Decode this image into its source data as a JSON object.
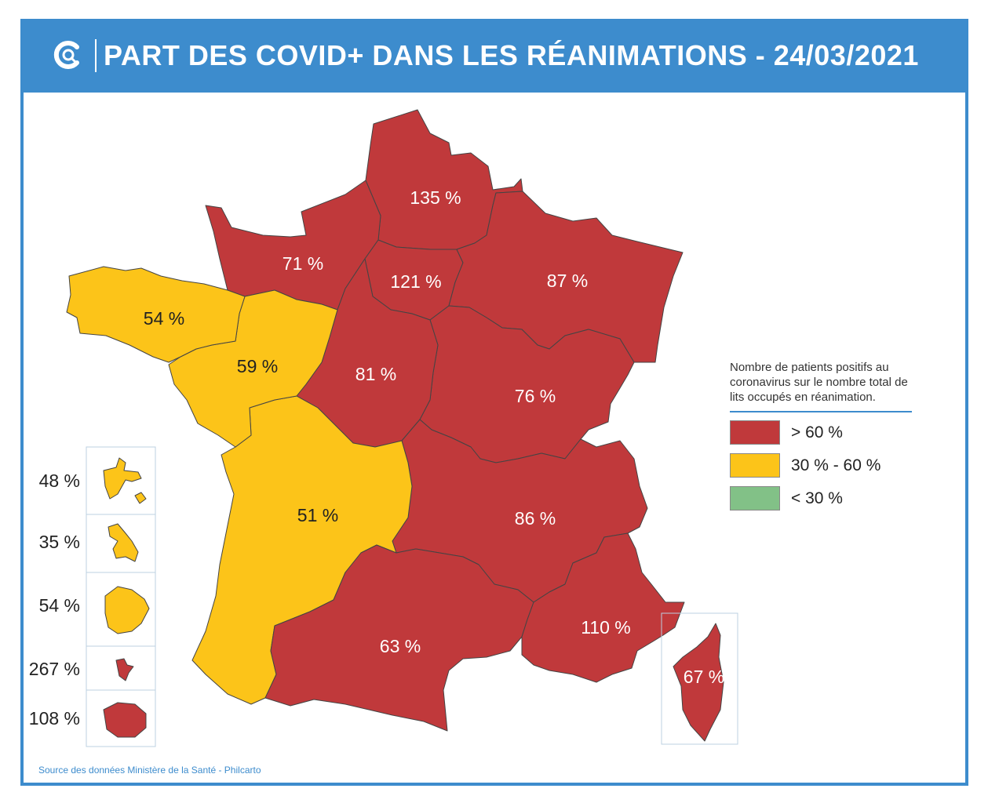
{
  "title": "PART DES COVID+ DANS LES RÉANIMATIONS - 24/03/2021",
  "colors": {
    "high": "#c0393b",
    "mid": "#fcc419",
    "low": "#82c187",
    "brand": "#3d8ccd"
  },
  "regions": [
    {
      "id": "hauts-de-france",
      "value": "135 %",
      "level": "high"
    },
    {
      "id": "normandie",
      "value": "71 %",
      "level": "high"
    },
    {
      "id": "ile-de-france",
      "value": "121 %",
      "level": "high"
    },
    {
      "id": "grand-est",
      "value": "87 %",
      "level": "high"
    },
    {
      "id": "bretagne",
      "value": "54 %",
      "level": "mid"
    },
    {
      "id": "pays-de-la-loire",
      "value": "59 %",
      "level": "mid"
    },
    {
      "id": "centre-val-de-loire",
      "value": "81 %",
      "level": "high"
    },
    {
      "id": "bourgogne-franche-comte",
      "value": "76 %",
      "level": "high"
    },
    {
      "id": "nouvelle-aquitaine",
      "value": "51 %",
      "level": "mid"
    },
    {
      "id": "auvergne-rhone-alpes",
      "value": "86 %",
      "level": "high"
    },
    {
      "id": "occitanie",
      "value": "63 %",
      "level": "high"
    },
    {
      "id": "provence-alpes-cote-d-azur",
      "value": "110 %",
      "level": "high"
    },
    {
      "id": "corse",
      "value": "67 %",
      "level": "high"
    }
  ],
  "overseas": [
    {
      "id": "guadeloupe",
      "value": "48 %",
      "level": "mid"
    },
    {
      "id": "martinique",
      "value": "35 %",
      "level": "mid"
    },
    {
      "id": "guyane",
      "value": "54 %",
      "level": "mid"
    },
    {
      "id": "mayotte",
      "value": "267 %",
      "level": "high"
    },
    {
      "id": "la-reunion",
      "value": "108 %",
      "level": "high"
    }
  ],
  "legend": {
    "description": "Nombre de patients positifs au coronavirus sur le nombre total de lits occupés en réanimation.",
    "items": [
      {
        "label": "> 60 %",
        "level": "high"
      },
      {
        "label": "30 % - 60 %",
        "level": "mid"
      },
      {
        "label": "< 30 %",
        "level": "low"
      }
    ]
  },
  "source": "Source des données Ministère de la Santé - Philcarto"
}
